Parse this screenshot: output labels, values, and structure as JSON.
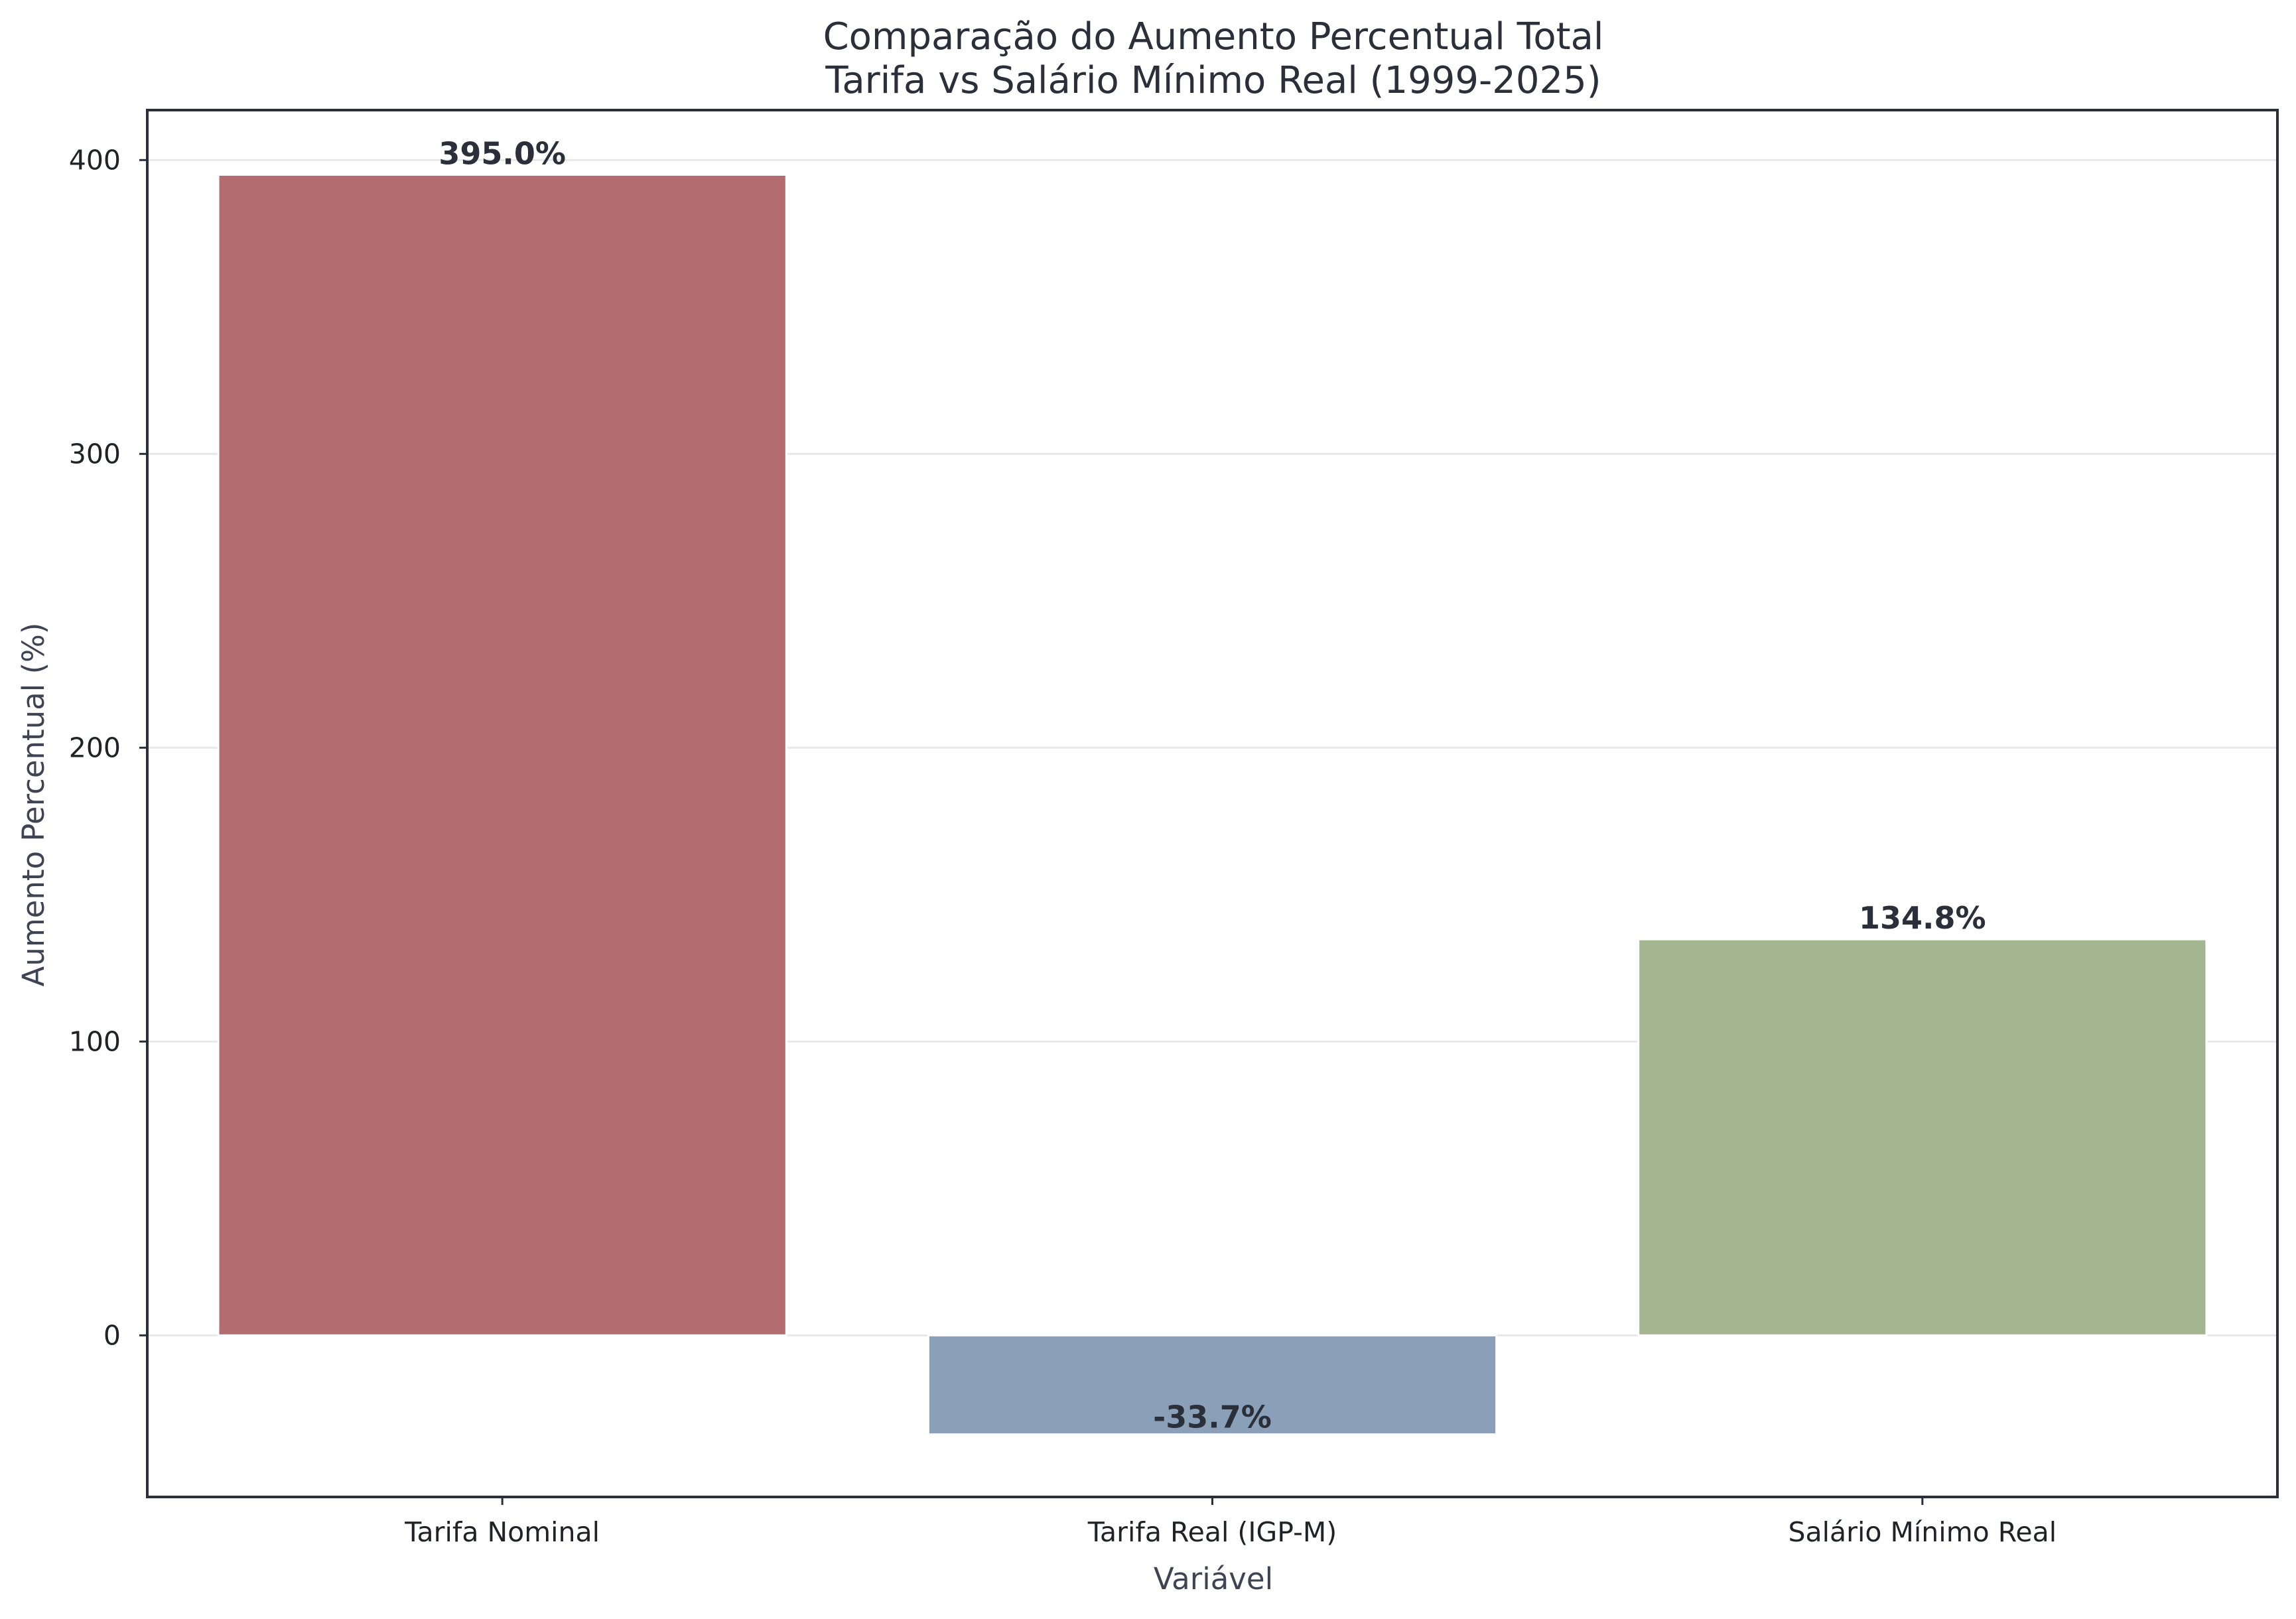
{
  "chart_data": {
    "type": "bar",
    "title_lines": [
      "Comparação do Aumento Percentual Total",
      "Tarifa vs Salário Mínimo Real (1999-2025)"
    ],
    "xlabel": "Variável",
    "ylabel": "Aumento Percentual (%)",
    "categories": [
      "Tarifa Nominal",
      "Tarifa Real (IGP-M)",
      "Salário Mínimo Real"
    ],
    "values": [
      395.0,
      -33.7,
      134.8
    ],
    "data_labels": [
      "395.0%",
      "-33.7%",
      "134.8%"
    ],
    "colors": [
      "#b36d71",
      "#8aa0b9",
      "#a3b591"
    ],
    "ylim": [
      -55,
      417
    ],
    "yticks": [
      0,
      100,
      200,
      300,
      400
    ],
    "grid": "horizontal"
  }
}
